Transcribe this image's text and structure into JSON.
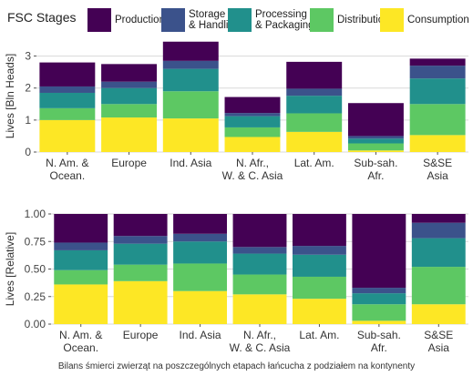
{
  "legend": {
    "title": "FSC Stages",
    "items": [
      {
        "key": "production",
        "label": "Production",
        "color": "#440154"
      },
      {
        "key": "storage",
        "label": "Storage\n& Handling",
        "color": "#3b528b"
      },
      {
        "key": "processing",
        "label": "Processing\n& Packaging",
        "color": "#21908c"
      },
      {
        "key": "distribution",
        "label": "Distribution",
        "color": "#5dc863"
      },
      {
        "key": "consumption",
        "label": "Consumption",
        "color": "#fde725"
      }
    ]
  },
  "caption": "Bilans śmierci zwierząt na poszczególnych etapach łańcucha z podziałem na kontynenty",
  "chart_data": [
    {
      "type": "bar",
      "stacked": true,
      "ylabel": "Lives [Bln Heads]",
      "ylim": [
        0,
        3.5
      ],
      "yticks": [
        "0",
        "1",
        "2",
        "3"
      ],
      "grid": true,
      "categories": [
        "N. Am. &\nOcean.",
        "Europe",
        "Ind. Asia",
        "N. Afr.,\nW. & C. Asia",
        "Lat. Am.",
        "Sub-sah.\nAfr.",
        "S&SE\nAsia"
      ],
      "series": [
        {
          "name": "Consumption",
          "color": "#fde725",
          "values": [
            1.0,
            1.08,
            1.05,
            0.47,
            0.63,
            0.05,
            0.53
          ]
        },
        {
          "name": "Distribution",
          "color": "#5dc863",
          "values": [
            0.37,
            0.42,
            0.85,
            0.3,
            0.58,
            0.22,
            0.97
          ]
        },
        {
          "name": "Processing & Packaging",
          "color": "#21908c",
          "values": [
            0.48,
            0.5,
            0.7,
            0.35,
            0.55,
            0.15,
            0.8
          ]
        },
        {
          "name": "Storage & Handling",
          "color": "#3b528b",
          "values": [
            0.2,
            0.2,
            0.25,
            0.1,
            0.22,
            0.08,
            0.4
          ]
        },
        {
          "name": "Production",
          "color": "#440154",
          "values": [
            0.75,
            0.55,
            0.6,
            0.5,
            0.84,
            1.03,
            0.22
          ]
        }
      ]
    },
    {
      "type": "bar",
      "stacked": true,
      "ylabel": "Lives [Relative]",
      "ylim": [
        0,
        1.0
      ],
      "yticks": [
        "0.00",
        "0.25",
        "0.50",
        "0.75",
        "1.00"
      ],
      "grid": true,
      "categories": [
        "N. Am. &\nOcean.",
        "Europe",
        "Ind. Asia",
        "N. Afr.,\nW. & C. Asia",
        "Lat. Am.",
        "Sub-sah.\nAfr.",
        "S&SE\nAsia"
      ],
      "series": [
        {
          "name": "Consumption",
          "color": "#fde725",
          "values": [
            0.36,
            0.39,
            0.3,
            0.27,
            0.23,
            0.03,
            0.18
          ]
        },
        {
          "name": "Distribution",
          "color": "#5dc863",
          "values": [
            0.13,
            0.15,
            0.25,
            0.18,
            0.2,
            0.15,
            0.34
          ]
        },
        {
          "name": "Processing & Packaging",
          "color": "#21908c",
          "values": [
            0.18,
            0.19,
            0.2,
            0.19,
            0.2,
            0.1,
            0.26
          ]
        },
        {
          "name": "Storage & Handling",
          "color": "#3b528b",
          "values": [
            0.07,
            0.07,
            0.07,
            0.06,
            0.08,
            0.05,
            0.14
          ]
        },
        {
          "name": "Production",
          "color": "#440154",
          "values": [
            0.26,
            0.2,
            0.18,
            0.3,
            0.29,
            0.67,
            0.08
          ]
        }
      ]
    }
  ]
}
